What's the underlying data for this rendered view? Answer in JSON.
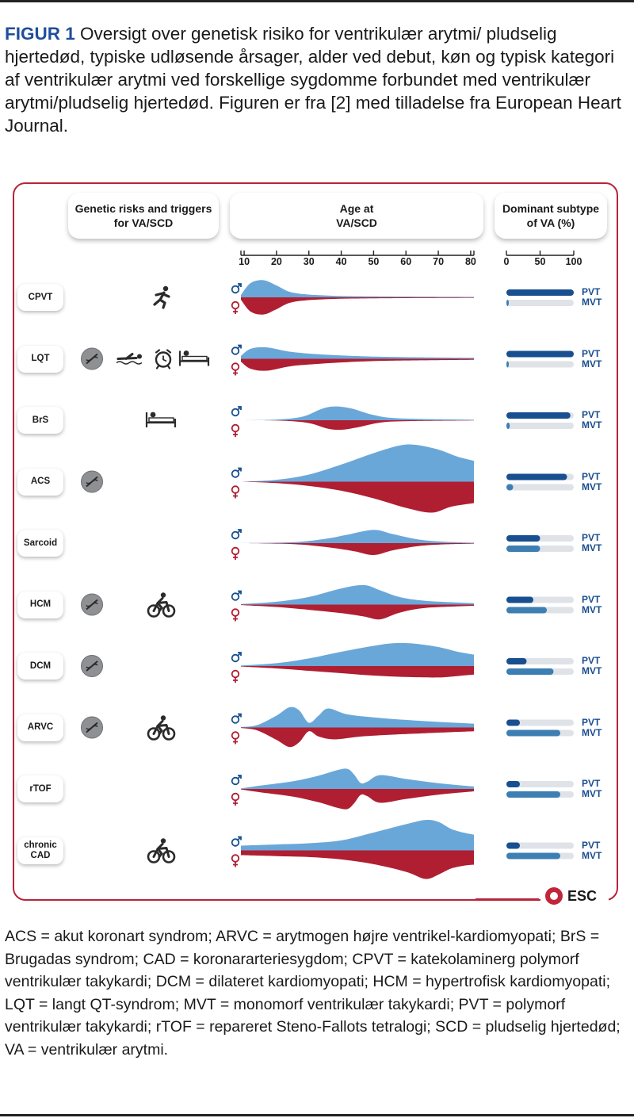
{
  "caption": {
    "label": "FIGUR 1",
    "text": " Oversigt over genetisk risiko for ventrikulær arytmi/ pludselig hjertedød, typiske udløsende årsager, alder ved debut, køn og typisk kategori af ventrikulær arytmi ved forskellige sygdomme forbundet med ventrikulær arytmi/pludselig hjertedød. Figuren er fra [2] med tilladelse fra European Heart Journal."
  },
  "headers": {
    "genetic": "Genetic risks and triggers\nfor  VA/SCD",
    "age": "Age at\nVA/SCD",
    "subtype": "Dominant subtype\nof VA (%)"
  },
  "logo": {
    "text": "ESC"
  },
  "footnote": "ACS = akut koronart syndrom; ARVC = arytmogen højre ventrikel-kardio­myopati; BrS = Brugadas syndrom; CAD = koronararteriesygdom; CPVT = katekolaminerg polymorf ventrikulær takykardi; DCM = dilateret kardio­myopati; HCM = hypertrofisk kardiomyopati; LQT = langt QT-syndrom; MVT = monomorf ventrikulær takykardi; PVT = polymorf ventrikulær takykardi; rTOF = repareret Steno-Fallots tetralogi; SCD = pludselig hjertedød; VA = ventrikulær arytmi.",
  "colors": {
    "male": "#6aa7d9",
    "female": "#b01e32",
    "pvt": "#174f91",
    "mvt": "#3d7fb3",
    "track": "#dfe3e8",
    "frame": "#b8243a"
  },
  "chart_data": {
    "type": "area",
    "age_ticks": [
      10,
      20,
      30,
      40,
      50,
      60,
      70,
      80
    ],
    "age_range": [
      9,
      81
    ],
    "subtype_ticks": [
      0,
      50,
      100
    ],
    "subtype_range": [
      0,
      100
    ],
    "sex_labels": {
      "male": "♂",
      "female": "♀"
    },
    "subtype_labels": {
      "pvt": "PVT",
      "mvt": "MVT"
    },
    "rows": [
      {
        "label": "CPVT",
        "genetic": false,
        "triggers": [
          "running-icon"
        ],
        "male": [
          [
            9,
            0.1
          ],
          [
            12,
            0.6
          ],
          [
            16,
            0.72
          ],
          [
            20,
            0.5
          ],
          [
            25,
            0.2
          ],
          [
            35,
            0.08
          ],
          [
            50,
            0.04
          ],
          [
            81,
            0.02
          ]
        ],
        "female": [
          [
            9,
            0.1
          ],
          [
            12,
            0.6
          ],
          [
            16,
            0.72
          ],
          [
            20,
            0.5
          ],
          [
            25,
            0.2
          ],
          [
            35,
            0.08
          ],
          [
            50,
            0.04
          ],
          [
            81,
            0.02
          ]
        ],
        "pvt": 100,
        "mvt": 0
      },
      {
        "label": "LQT",
        "genetic": true,
        "triggers": [
          "swimming-icon",
          "alarm-clock-icon",
          "bed-icon"
        ],
        "male": [
          [
            9,
            0.12
          ],
          [
            12,
            0.42
          ],
          [
            17,
            0.48
          ],
          [
            24,
            0.3
          ],
          [
            32,
            0.2
          ],
          [
            42,
            0.13
          ],
          [
            55,
            0.08
          ],
          [
            81,
            0.04
          ]
        ],
        "female": [
          [
            9,
            0.12
          ],
          [
            12,
            0.42
          ],
          [
            17,
            0.5
          ],
          [
            24,
            0.32
          ],
          [
            32,
            0.22
          ],
          [
            42,
            0.14
          ],
          [
            55,
            0.08
          ],
          [
            81,
            0.04
          ]
        ],
        "pvt": 100,
        "mvt": 0
      },
      {
        "label": "BrS",
        "genetic": false,
        "triggers": [
          "bed-icon"
        ],
        "male": [
          [
            9,
            0
          ],
          [
            20,
            0.03
          ],
          [
            28,
            0.15
          ],
          [
            34,
            0.48
          ],
          [
            38,
            0.58
          ],
          [
            43,
            0.5
          ],
          [
            50,
            0.22
          ],
          [
            58,
            0.08
          ],
          [
            81,
            0.02
          ]
        ],
        "female": [
          [
            9,
            0
          ],
          [
            22,
            0.02
          ],
          [
            30,
            0.12
          ],
          [
            36,
            0.36
          ],
          [
            40,
            0.4
          ],
          [
            45,
            0.3
          ],
          [
            52,
            0.1
          ],
          [
            60,
            0.04
          ],
          [
            81,
            0.01
          ]
        ],
        "pvt": 95,
        "mvt": 5
      },
      {
        "label": "ACS",
        "genetic": true,
        "triggers": [],
        "male": [
          [
            9,
            0
          ],
          [
            20,
            0.08
          ],
          [
            30,
            0.3
          ],
          [
            40,
            0.72
          ],
          [
            50,
            1.2
          ],
          [
            58,
            1.52
          ],
          [
            63,
            1.55
          ],
          [
            70,
            1.35
          ],
          [
            76,
            1.05
          ],
          [
            81,
            0.88
          ]
        ],
        "female": [
          [
            9,
            0
          ],
          [
            20,
            0.06
          ],
          [
            30,
            0.18
          ],
          [
            40,
            0.38
          ],
          [
            50,
            0.7
          ],
          [
            60,
            1.1
          ],
          [
            68,
            1.3
          ],
          [
            74,
            1.05
          ],
          [
            81,
            0.9
          ]
        ],
        "pvt": 90,
        "mvt": 10
      },
      {
        "label": "Sarcoid",
        "genetic": false,
        "triggers": [],
        "male": [
          [
            9,
            0
          ],
          [
            25,
            0.04
          ],
          [
            35,
            0.18
          ],
          [
            42,
            0.36
          ],
          [
            50,
            0.56
          ],
          [
            56,
            0.38
          ],
          [
            64,
            0.15
          ],
          [
            72,
            0.06
          ],
          [
            81,
            0.02
          ]
        ],
        "female": [
          [
            9,
            0
          ],
          [
            25,
            0.04
          ],
          [
            35,
            0.16
          ],
          [
            44,
            0.34
          ],
          [
            50,
            0.5
          ],
          [
            56,
            0.3
          ],
          [
            64,
            0.12
          ],
          [
            72,
            0.05
          ],
          [
            81,
            0.02
          ]
        ],
        "pvt": 50,
        "mvt": 50
      },
      {
        "label": "HCM",
        "genetic": true,
        "triggers": [
          "cycling-icon"
        ],
        "male": [
          [
            9,
            0.02
          ],
          [
            20,
            0.12
          ],
          [
            30,
            0.32
          ],
          [
            40,
            0.68
          ],
          [
            47,
            0.82
          ],
          [
            52,
            0.6
          ],
          [
            58,
            0.32
          ],
          [
            66,
            0.16
          ],
          [
            81,
            0.06
          ]
        ],
        "female": [
          [
            9,
            0.02
          ],
          [
            20,
            0.1
          ],
          [
            30,
            0.22
          ],
          [
            40,
            0.36
          ],
          [
            47,
            0.5
          ],
          [
            52,
            0.62
          ],
          [
            58,
            0.34
          ],
          [
            66,
            0.14
          ],
          [
            81,
            0.05
          ]
        ],
        "pvt": 40,
        "mvt": 60
      },
      {
        "label": "DCM",
        "genetic": true,
        "triggers": [],
        "male": [
          [
            9,
            0.02
          ],
          [
            20,
            0.12
          ],
          [
            30,
            0.32
          ],
          [
            40,
            0.6
          ],
          [
            50,
            0.85
          ],
          [
            56,
            0.96
          ],
          [
            62,
            0.95
          ],
          [
            70,
            0.8
          ],
          [
            76,
            0.6
          ],
          [
            81,
            0.48
          ]
        ],
        "female": [
          [
            9,
            0.02
          ],
          [
            20,
            0.1
          ],
          [
            30,
            0.2
          ],
          [
            40,
            0.3
          ],
          [
            50,
            0.4
          ],
          [
            60,
            0.46
          ],
          [
            70,
            0.48
          ],
          [
            76,
            0.42
          ],
          [
            81,
            0.36
          ]
        ],
        "pvt": 30,
        "mvt": 70
      },
      {
        "label": "ARVC",
        "genetic": true,
        "triggers": [
          "cycling-icon"
        ],
        "male": [
          [
            9,
            0.02
          ],
          [
            14,
            0.1
          ],
          [
            20,
            0.5
          ],
          [
            24,
            0.85
          ],
          [
            27,
            0.72
          ],
          [
            30,
            0.2
          ],
          [
            33,
            0.5
          ],
          [
            36,
            0.8
          ],
          [
            42,
            0.55
          ],
          [
            52,
            0.4
          ],
          [
            62,
            0.3
          ],
          [
            72,
            0.22
          ],
          [
            81,
            0.16
          ]
        ],
        "female": [
          [
            9,
            0.02
          ],
          [
            14,
            0.12
          ],
          [
            20,
            0.52
          ],
          [
            24,
            0.82
          ],
          [
            27,
            0.62
          ],
          [
            30,
            0.16
          ],
          [
            33,
            0.38
          ],
          [
            38,
            0.5
          ],
          [
            46,
            0.38
          ],
          [
            56,
            0.3
          ],
          [
            66,
            0.24
          ],
          [
            81,
            0.16
          ]
        ],
        "pvt": 20,
        "mvt": 80
      },
      {
        "label": "rTOF",
        "genetic": false,
        "triggers": [],
        "male": [
          [
            9,
            0.02
          ],
          [
            15,
            0.14
          ],
          [
            25,
            0.32
          ],
          [
            33,
            0.56
          ],
          [
            39,
            0.8
          ],
          [
            42,
            0.84
          ],
          [
            44,
            0.6
          ],
          [
            46,
            0.25
          ],
          [
            48,
            0.3
          ],
          [
            52,
            0.58
          ],
          [
            60,
            0.42
          ],
          [
            70,
            0.24
          ],
          [
            81,
            0.1
          ]
        ],
        "female": [
          [
            9,
            0.02
          ],
          [
            15,
            0.14
          ],
          [
            25,
            0.32
          ],
          [
            33,
            0.56
          ],
          [
            39,
            0.8
          ],
          [
            42,
            0.84
          ],
          [
            44,
            0.6
          ],
          [
            46,
            0.25
          ],
          [
            48,
            0.3
          ],
          [
            52,
            0.58
          ],
          [
            60,
            0.42
          ],
          [
            70,
            0.24
          ],
          [
            81,
            0.1
          ]
        ],
        "pvt": 20,
        "mvt": 80
      },
      {
        "label": "chronic\nCAD",
        "genetic": false,
        "triggers": [
          "cycling-icon"
        ],
        "male": [
          [
            9,
            0.2
          ],
          [
            20,
            0.25
          ],
          [
            30,
            0.3
          ],
          [
            40,
            0.42
          ],
          [
            50,
            0.75
          ],
          [
            60,
            1.1
          ],
          [
            66,
            1.28
          ],
          [
            70,
            1.2
          ],
          [
            74,
            0.9
          ],
          [
            78,
            0.74
          ],
          [
            81,
            0.66
          ]
        ],
        "female": [
          [
            9,
            0.2
          ],
          [
            20,
            0.24
          ],
          [
            30,
            0.28
          ],
          [
            40,
            0.38
          ],
          [
            50,
            0.58
          ],
          [
            60,
            0.9
          ],
          [
            66,
            1.2
          ],
          [
            70,
            1.02
          ],
          [
            74,
            0.76
          ],
          [
            78,
            0.64
          ],
          [
            81,
            0.6
          ]
        ],
        "pvt": 20,
        "mvt": 80
      }
    ]
  }
}
